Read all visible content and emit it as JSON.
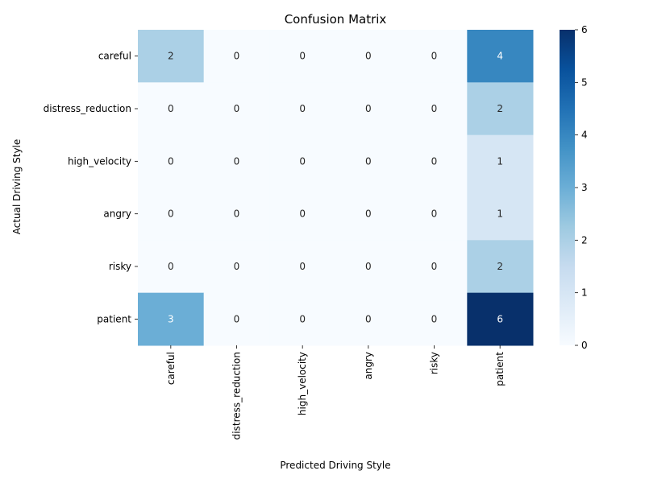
{
  "chart_data": {
    "type": "heatmap",
    "title": "Confusion Matrix",
    "xlabel": "Predicted Driving Style",
    "ylabel": "Actual Driving Style",
    "x_categories": [
      "careful",
      "distress_reduction",
      "high_velocity",
      "angry",
      "risky",
      "patient"
    ],
    "y_categories": [
      "careful",
      "distress_reduction",
      "high_velocity",
      "angry",
      "risky",
      "patient"
    ],
    "values": [
      [
        2,
        0,
        0,
        0,
        0,
        4
      ],
      [
        0,
        0,
        0,
        0,
        0,
        2
      ],
      [
        0,
        0,
        0,
        0,
        0,
        1
      ],
      [
        0,
        0,
        0,
        0,
        0,
        1
      ],
      [
        0,
        0,
        0,
        0,
        0,
        2
      ],
      [
        3,
        0,
        0,
        0,
        0,
        6
      ]
    ],
    "colorbar": {
      "min": 0,
      "max": 6,
      "ticks": [
        0,
        1,
        2,
        3,
        4,
        5,
        6
      ],
      "colormap": "Blues"
    },
    "annotated": true
  }
}
